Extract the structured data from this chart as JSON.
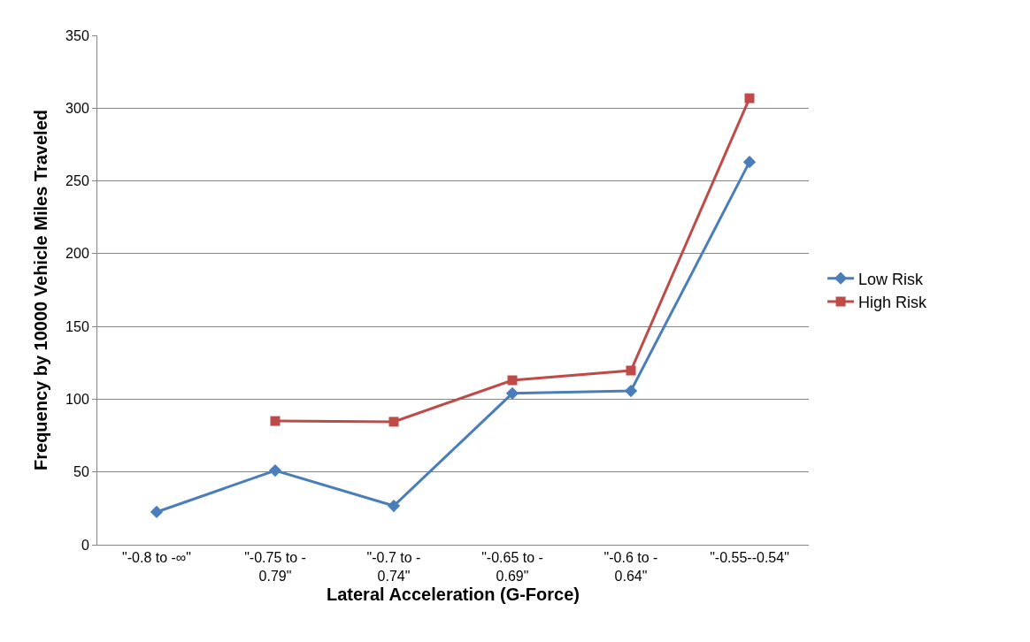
{
  "chart_data": {
    "type": "line",
    "xlabel": "Lateral Acceleration (G-Force)",
    "ylabel": "Frequency by 10000 Vehicle Miles Traveled",
    "categories": [
      "\"-0.8 to -∞\"",
      "\"-0.75 to - 0.79\"",
      "\"-0.7 to - 0.74\"",
      "\"-0.65 to - 0.69\"",
      "\"-0.6 to - 0.64\"",
      "\"-0.55--0.54\""
    ],
    "series": [
      {
        "name": "Low Risk",
        "color": "#4a7ebb",
        "marker": "diamond",
        "values": [
          22.5,
          51,
          26.7,
          104,
          105.7,
          263
        ]
      },
      {
        "name": "High Risk",
        "color": "#be4b48",
        "marker": "square",
        "values": [
          null,
          85,
          84.5,
          113,
          119.7,
          306.8
        ]
      }
    ],
    "ylim": [
      0,
      350
    ],
    "yticks": [
      0,
      50,
      100,
      150,
      200,
      250,
      300,
      350
    ],
    "grid": "y",
    "legend": "right",
    "line_style": "solid"
  }
}
